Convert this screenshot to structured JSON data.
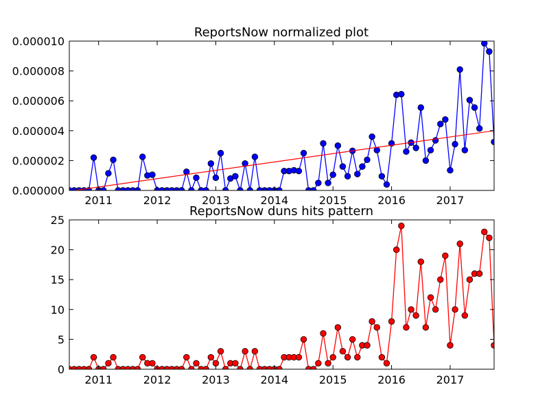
{
  "chart_data": [
    {
      "type": "line",
      "title": "ReportsNow normalized plot",
      "xlabel": "",
      "ylabel": "",
      "x_start": "2010-07",
      "xlim": [
        "2010-07",
        "2017-10"
      ],
      "ylim": [
        0,
        1e-05
      ],
      "x_tick_labels": [
        "2011",
        "2012",
        "2013",
        "2014",
        "2015",
        "2016",
        "2017"
      ],
      "y_tick_labels": [
        "0.000000",
        "0.000002",
        "0.000004",
        "0.000006",
        "0.000008",
        "0.000010"
      ],
      "grid": false,
      "series": [
        {
          "color": "#0000ff",
          "values": [
            0,
            0,
            0,
            0,
            0,
            2.2e-06,
            0,
            0,
            1.15e-06,
            2.05e-06,
            0,
            0,
            0,
            0,
            0,
            2.25e-06,
            1e-06,
            1.05e-06,
            0,
            0,
            0,
            0,
            0,
            0,
            1.25e-06,
            0,
            8.5e-07,
            0,
            0,
            1.8e-06,
            8.5e-07,
            2.5e-06,
            0,
            8e-07,
            9.5e-07,
            0,
            1.8e-06,
            0,
            2.25e-06,
            0,
            0,
            0,
            0,
            0,
            1.3e-06,
            1.3e-06,
            1.35e-06,
            1.3e-06,
            2.5e-06,
            0,
            0,
            5e-07,
            3.15e-06,
            5e-07,
            1.05e-06,
            3e-06,
            1.6e-06,
            9.5e-07,
            2.65e-06,
            1.1e-06,
            1.6e-06,
            2.05e-06,
            3.6e-06,
            2.7e-06,
            9.5e-07,
            4e-07,
            3.15e-06,
            6.4e-06,
            6.45e-06,
            2.6e-06,
            3.2e-06,
            2.85e-06,
            5.55e-06,
            2e-06,
            2.7e-06,
            3.35e-06,
            4.45e-06,
            4.75e-06,
            1.35e-06,
            3.1e-06,
            8.1e-06,
            2.7e-06,
            6.05e-06,
            5.55e-06,
            4.15e-06,
            9.85e-06,
            9.3e-06,
            3.25e-06
          ]
        },
        {
          "color": "#ff0000",
          "trendline": true,
          "values": [
            -5e-08,
            4e-06
          ]
        }
      ]
    },
    {
      "type": "line",
      "title": "ReportsNow duns hits pattern",
      "xlabel": "",
      "ylabel": "",
      "x_start": "2010-07",
      "xlim": [
        "2010-07",
        "2017-10"
      ],
      "ylim": [
        0,
        25
      ],
      "x_tick_labels": [
        "2011",
        "2012",
        "2013",
        "2014",
        "2015",
        "2016",
        "2017"
      ],
      "y_tick_labels": [
        "0",
        "5",
        "10",
        "15",
        "20",
        "25"
      ],
      "grid": false,
      "series": [
        {
          "color": "#ff0000",
          "values": [
            0,
            0,
            0,
            0,
            0,
            2,
            0,
            0,
            1,
            2,
            0,
            0,
            0,
            0,
            0,
            2,
            1,
            1,
            0,
            0,
            0,
            0,
            0,
            0,
            2,
            0,
            1,
            0,
            0,
            2,
            1,
            3,
            0,
            1,
            1,
            0,
            3,
            0,
            3,
            0,
            0,
            0,
            0,
            0,
            2,
            2,
            2,
            2,
            5,
            0,
            0,
            1,
            6,
            1,
            2,
            7,
            3,
            2,
            5,
            2,
            4,
            4,
            8,
            7,
            2,
            1,
            8,
            20,
            24,
            7,
            10,
            9,
            18,
            7,
            12,
            10,
            15,
            19,
            4,
            10,
            21,
            9,
            15,
            16,
            16,
            23,
            22,
            4
          ]
        }
      ]
    }
  ]
}
